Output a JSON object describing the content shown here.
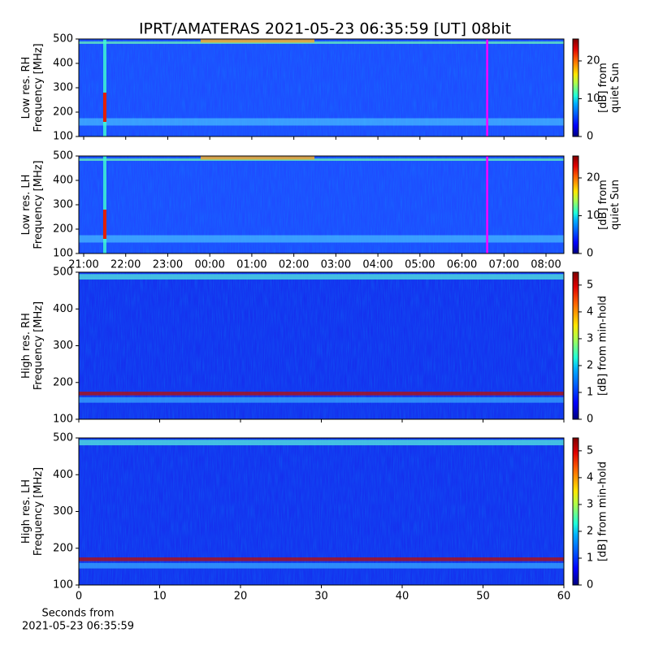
{
  "title": "IPRT/AMATERAS 2021-05-23 06:35:59 [UT]   08bit",
  "chart_data": [
    {
      "type": "heatmap",
      "ylabel": [
        "Low res. RH",
        "Frequency [MHz]"
      ],
      "ylim": [
        100,
        500
      ],
      "yticks": [
        100,
        200,
        300,
        400,
        500
      ],
      "xlim": [
        20.884,
        32.425
      ],
      "xticks": [
        21,
        22,
        23,
        24,
        25,
        26,
        27,
        28,
        29,
        30,
        31,
        32
      ],
      "xtick_labels": false,
      "colorbar": {
        "label": [
          "[dB] from",
          "quiet Sun"
        ],
        "lim": [
          0,
          25.8
        ],
        "ticks": [
          0,
          10,
          20
        ]
      },
      "vline": {
        "x": 30.6,
        "color": "#ff00ff"
      }
    },
    {
      "type": "heatmap",
      "ylabel": [
        "Low res. LH",
        "Frequency [MHz]"
      ],
      "ylim": [
        100,
        500
      ],
      "yticks": [
        100,
        200,
        300,
        400,
        500
      ],
      "xlim": [
        20.884,
        32.425
      ],
      "xticks": [
        {
          "value": 21,
          "label": "21:00"
        },
        {
          "value": 22,
          "label": "22:00"
        },
        {
          "value": 23,
          "label": "23:00"
        },
        {
          "value": 24,
          "label": "00:00"
        },
        {
          "value": 25,
          "label": "01:00"
        },
        {
          "value": 26,
          "label": "02:00"
        },
        {
          "value": 27,
          "label": "03:00"
        },
        {
          "value": 28,
          "label": "04:00"
        },
        {
          "value": 29,
          "label": "05:00"
        },
        {
          "value": 30,
          "label": "06:00"
        },
        {
          "value": 31,
          "label": "07:00"
        },
        {
          "value": 32,
          "label": "08:00"
        }
      ],
      "xtick_labels": true,
      "colorbar": {
        "label": [
          "[dB] from",
          "quiet Sun"
        ],
        "lim": [
          0,
          25.8
        ],
        "ticks": [
          0,
          10,
          20
        ]
      },
      "vline": {
        "x": 30.6,
        "color": "#ff00ff"
      }
    },
    {
      "type": "heatmap",
      "ylabel": [
        "High res. RH",
        "Frequency [MHz]"
      ],
      "ylim": [
        100,
        500
      ],
      "yticks": [
        100,
        200,
        300,
        400,
        500
      ],
      "xlim": [
        0,
        60
      ],
      "xticks": [
        0,
        10,
        20,
        30,
        40,
        50,
        60
      ],
      "xtick_labels": false,
      "colorbar": {
        "label": [
          "[dB] from min-hold"
        ],
        "lim": [
          0,
          5.48
        ],
        "ticks": [
          0,
          1,
          2,
          3,
          4,
          5
        ]
      }
    },
    {
      "type": "heatmap",
      "ylabel": [
        "High res. LH",
        "Frequency [MHz]"
      ],
      "ylim": [
        100,
        500
      ],
      "yticks": [
        100,
        200,
        300,
        400,
        500
      ],
      "xlim": [
        0,
        60
      ],
      "xticks": [
        0,
        10,
        20,
        30,
        40,
        50,
        60
      ],
      "xtick_labels": true,
      "xlabel": [
        "Seconds from",
        "2021-05-23 06:35:59"
      ],
      "colorbar": {
        "label": [
          "[dB] from min-hold"
        ],
        "lim": [
          0,
          5.48
        ],
        "ticks": [
          0,
          1,
          2,
          3,
          4,
          5
        ]
      }
    }
  ]
}
